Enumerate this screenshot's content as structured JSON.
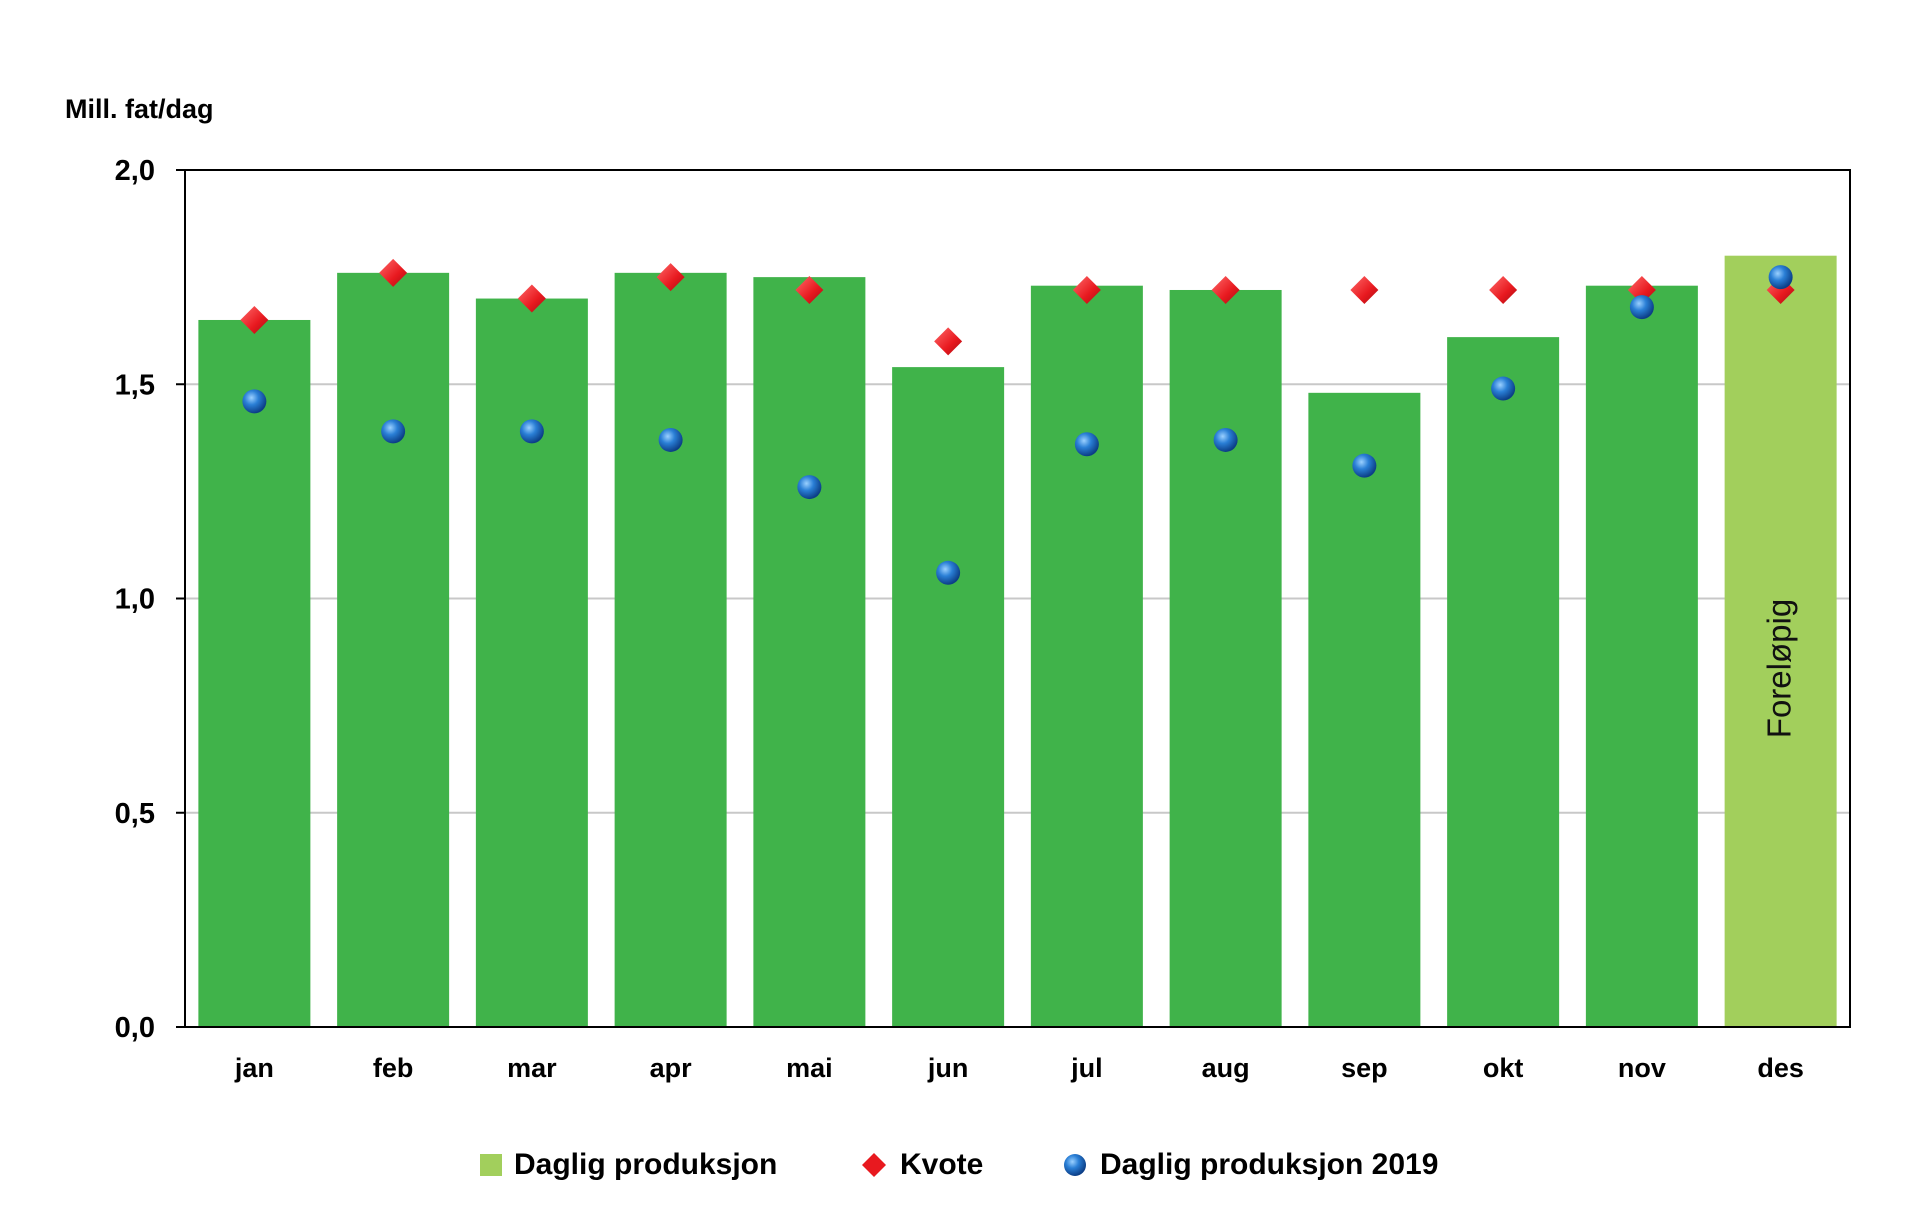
{
  "chart_data": {
    "type": "bar",
    "ylabel": "Mill. fat/dag",
    "ylim": [
      0,
      2.0
    ],
    "yticks": [
      "0,0",
      "0,5",
      "1,0",
      "1,5",
      "2,0"
    ],
    "ytick_values": [
      0,
      0.5,
      1.0,
      1.5,
      2.0
    ],
    "grid": true,
    "categories": [
      "jan",
      "feb",
      "mar",
      "apr",
      "mai",
      "jun",
      "jul",
      "aug",
      "sep",
      "okt",
      "nov",
      "des"
    ],
    "series": [
      {
        "name": "Daglig produksjon",
        "kind": "bar",
        "color": "#40b34a",
        "preliminary_color": "#a2cf5c",
        "values": [
          1.65,
          1.76,
          1.7,
          1.76,
          1.75,
          1.54,
          1.73,
          1.72,
          1.48,
          1.61,
          1.73,
          1.8
        ]
      },
      {
        "name": "Kvote",
        "kind": "diamond",
        "color": "#e8191f",
        "values": [
          1.65,
          1.76,
          1.7,
          1.75,
          1.72,
          1.6,
          1.72,
          1.72,
          1.72,
          1.72,
          1.72,
          1.72
        ]
      },
      {
        "name": "Daglig produksjon 2019",
        "kind": "circle",
        "color": "#1f6fc5",
        "values": [
          1.46,
          1.39,
          1.39,
          1.37,
          1.26,
          1.06,
          1.36,
          1.37,
          1.31,
          1.49,
          1.68,
          1.75
        ]
      }
    ],
    "annotations": [
      {
        "category": "des",
        "text": "Foreløpig"
      }
    ],
    "legend_position": "bottom"
  }
}
